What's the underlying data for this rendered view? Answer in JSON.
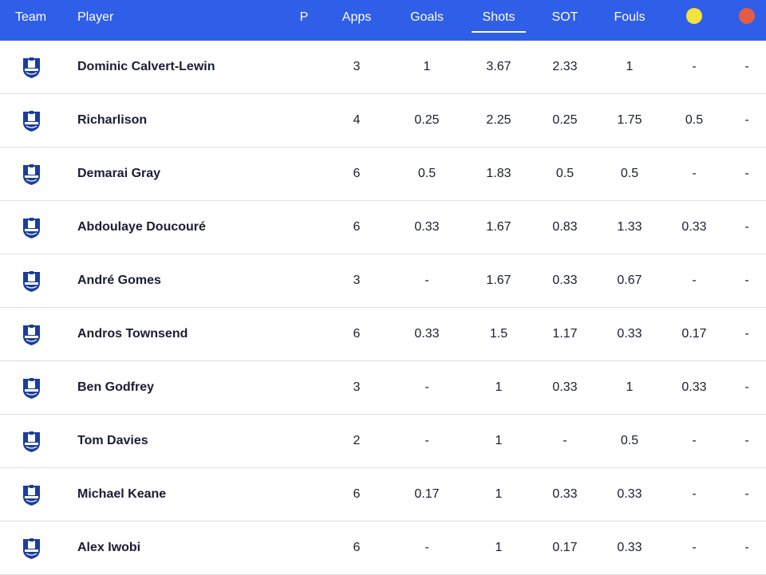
{
  "header": {
    "team": "Team",
    "player": "Player",
    "p": "P",
    "apps": "Apps",
    "goals": "Goals",
    "shots": "Shots",
    "sot": "SOT",
    "fouls": "Fouls",
    "yellow_icon": "yellow-card-icon",
    "red_icon": "red-card-icon",
    "yellow_color": "#f5e23a",
    "red_color": "#e45c45",
    "active_column": "Shots"
  },
  "colors": {
    "header_bg": "#2f5ee8",
    "crest": "#1b3d9e"
  },
  "rows": [
    {
      "player": "Dominic Calvert-Lewin",
      "apps": "3",
      "goals": "1",
      "shots": "3.67",
      "sot": "2.33",
      "fouls": "1",
      "yellow": "-",
      "red": "-"
    },
    {
      "player": "Richarlison",
      "apps": "4",
      "goals": "0.25",
      "shots": "2.25",
      "sot": "0.25",
      "fouls": "1.75",
      "yellow": "0.5",
      "red": "-"
    },
    {
      "player": "Demarai Gray",
      "apps": "6",
      "goals": "0.5",
      "shots": "1.83",
      "sot": "0.5",
      "fouls": "0.5",
      "yellow": "-",
      "red": "-"
    },
    {
      "player": "Abdoulaye Doucouré",
      "apps": "6",
      "goals": "0.33",
      "shots": "1.67",
      "sot": "0.83",
      "fouls": "1.33",
      "yellow": "0.33",
      "red": "-"
    },
    {
      "player": "André Gomes",
      "apps": "3",
      "goals": "-",
      "shots": "1.67",
      "sot": "0.33",
      "fouls": "0.67",
      "yellow": "-",
      "red": "-"
    },
    {
      "player": "Andros Townsend",
      "apps": "6",
      "goals": "0.33",
      "shots": "1.5",
      "sot": "1.17",
      "fouls": "0.33",
      "yellow": "0.17",
      "red": "-"
    },
    {
      "player": "Ben Godfrey",
      "apps": "3",
      "goals": "-",
      "shots": "1",
      "sot": "0.33",
      "fouls": "1",
      "yellow": "0.33",
      "red": "-"
    },
    {
      "player": "Tom Davies",
      "apps": "2",
      "goals": "-",
      "shots": "1",
      "sot": "-",
      "fouls": "0.5",
      "yellow": "-",
      "red": "-"
    },
    {
      "player": "Michael Keane",
      "apps": "6",
      "goals": "0.17",
      "shots": "1",
      "sot": "0.33",
      "fouls": "0.33",
      "yellow": "-",
      "red": "-"
    },
    {
      "player": "Alex Iwobi",
      "apps": "6",
      "goals": "-",
      "shots": "1",
      "sot": "0.17",
      "fouls": "0.33",
      "yellow": "-",
      "red": "-"
    }
  ]
}
